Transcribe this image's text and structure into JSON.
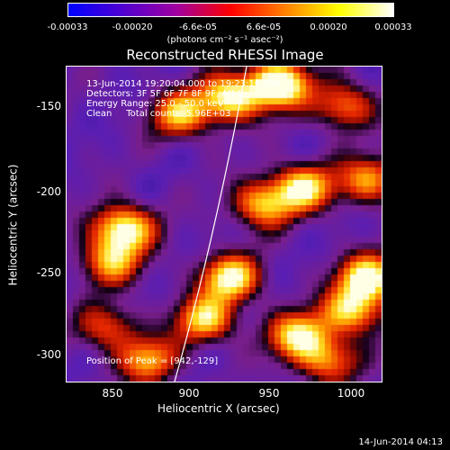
{
  "colorbar": {
    "ticks": [
      "-0.00033",
      "-0.00020",
      "-6.6e-05",
      "6.6e-05",
      "0.00020",
      "0.00033"
    ],
    "unit": "(photons cm⁻² s⁻¹ asec⁻²)",
    "stops": [
      "#0000ff",
      "#5000d0",
      "#a000a0",
      "#ff0000",
      "#ff8000",
      "#ffff00",
      "#ffffff"
    ]
  },
  "title": "Reconstructed RHESSI Image",
  "info": {
    "time_range": "13-Jun-2014 19:20:04.000 to 19:23:16.000",
    "detectors": "Detectors: 3F 5F 6F 7F 8F 9F, Att 0",
    "energy": "Energy Range: 25.0 - 50.0 keV",
    "clean": "Clean     Total counts: 5.96E+03",
    "peak": "Position of Peak = [942,-129]"
  },
  "axes": {
    "xlabel": "Heliocentric X (arcsec)",
    "ylabel": "Heliocentric Y (arcsec)",
    "xticks": [
      "850",
      "900",
      "950",
      "1000"
    ],
    "yticks": [
      "-150",
      "-200",
      "-250",
      "-300"
    ],
    "xlim": [
      822,
      1015
    ],
    "ylim": [
      -320,
      -128
    ]
  },
  "footer": "14-Jun-2014 04:13",
  "blobs": [
    {
      "x": 950,
      "y": -137,
      "v": 1.0
    },
    {
      "x": 920,
      "y": -145,
      "v": 0.8
    },
    {
      "x": 890,
      "y": -155,
      "v": 0.65
    },
    {
      "x": 990,
      "y": -150,
      "v": 0.55
    },
    {
      "x": 965,
      "y": -200,
      "v": 0.75
    },
    {
      "x": 940,
      "y": -210,
      "v": 0.65
    },
    {
      "x": 1005,
      "y": -195,
      "v": 0.6
    },
    {
      "x": 855,
      "y": -225,
      "v": 0.85
    },
    {
      "x": 847,
      "y": -245,
      "v": 0.6
    },
    {
      "x": 920,
      "y": -255,
      "v": 0.8
    },
    {
      "x": 905,
      "y": -280,
      "v": 0.7
    },
    {
      "x": 1005,
      "y": -255,
      "v": 0.85
    },
    {
      "x": 995,
      "y": -275,
      "v": 0.7
    },
    {
      "x": 962,
      "y": -290,
      "v": 0.75
    },
    {
      "x": 980,
      "y": -305,
      "v": 0.55
    },
    {
      "x": 870,
      "y": -305,
      "v": 0.6
    },
    {
      "x": 845,
      "y": -285,
      "v": 0.45
    }
  ]
}
